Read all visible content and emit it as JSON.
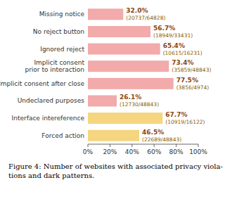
{
  "chart_data": {
    "type": "bar",
    "orientation": "horizontal",
    "categories": [
      "Forced action",
      "Interface intereference",
      "Undeclared purposes",
      "Implicit consent after close",
      "Implicit consent\nprior to interaction",
      "Ignored reject",
      "No reject button",
      "Missing notice"
    ],
    "values": [
      46.5,
      67.7,
      26.1,
      77.5,
      73.4,
      65.4,
      56.7,
      32.0
    ],
    "data_labels": true,
    "value_labels": [
      "46.5%",
      "67.7%",
      "26.1%",
      "77.5%",
      "73.4%",
      "65.4%",
      "56.7%",
      "32.0%"
    ],
    "annotations": [
      "(22689/48843)",
      "(10919/16122)",
      "(12730/48843)",
      "(3856/4974)",
      "(35859/48843)",
      "(10615/16231)",
      "(18949/33431)",
      "(20737/64828)"
    ],
    "colors": [
      "#f5d580",
      "#f5d580",
      "#f2aaaa",
      "#f2aaaa",
      "#f2aaaa",
      "#f2aaaa",
      "#f2aaaa",
      "#f2aaaa"
    ],
    "xlim": [
      0,
      100
    ],
    "xticks": [
      {
        "value": 0,
        "label": "0%"
      },
      {
        "value": 20,
        "label": "20%"
      },
      {
        "value": 40,
        "label": "40%"
      },
      {
        "value": 60,
        "label": "60%"
      },
      {
        "value": 80,
        "label": "80%"
      },
      {
        "value": 100,
        "label": "100%"
      }
    ],
    "grid": false,
    "caption": "Figure 4: Number of websites with associated privacy viola-\ntions and dark patterns."
  }
}
